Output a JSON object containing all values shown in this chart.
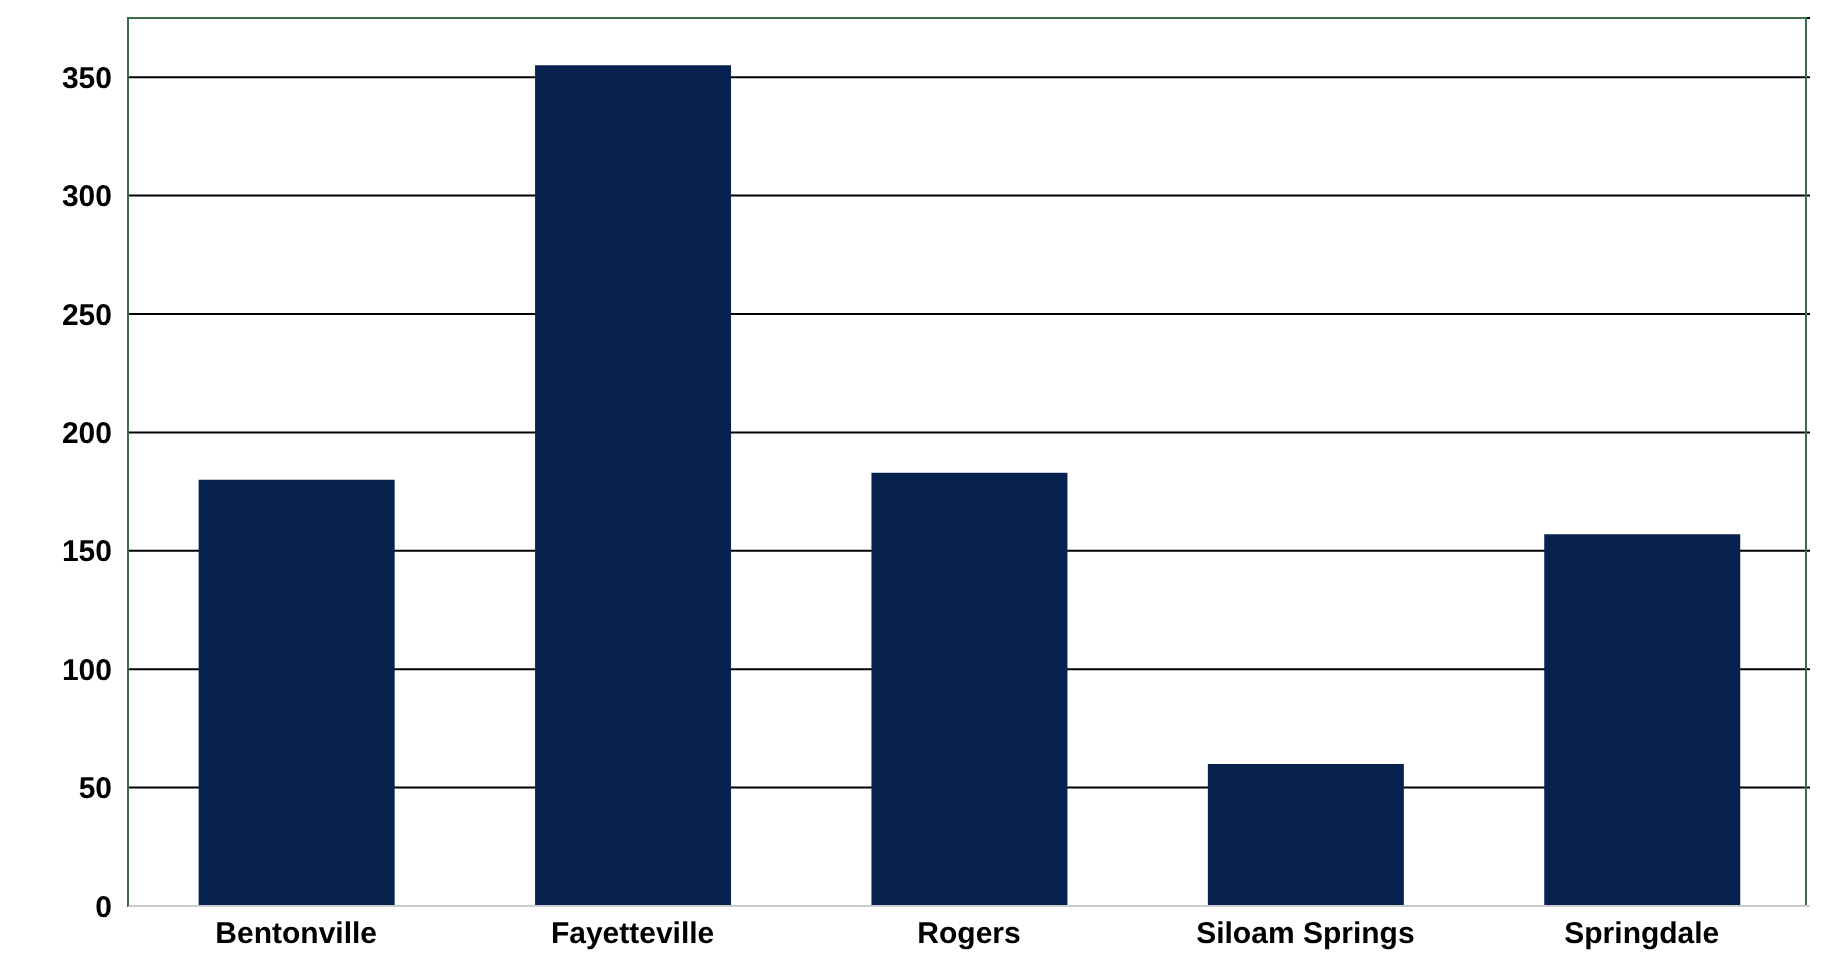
{
  "chart_data": {
    "type": "bar",
    "categories": [
      "Bentonville",
      "Fayetteville",
      "Rogers",
      "Siloam Springs",
      "Springdale"
    ],
    "values": [
      180,
      355,
      183,
      60,
      157
    ],
    "color": "#082250",
    "ylim": [
      0,
      375
    ],
    "yticks": [
      0,
      50,
      100,
      150,
      200,
      250,
      300,
      350
    ],
    "grid": "y"
  }
}
